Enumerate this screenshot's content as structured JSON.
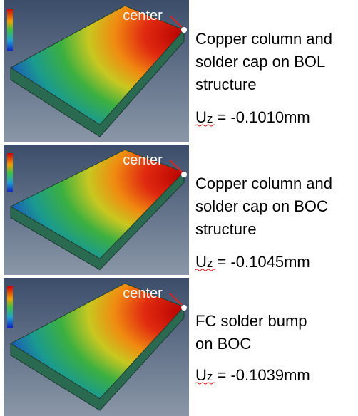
{
  "panels": [
    {
      "label": "center",
      "lines": [
        "Copper column and",
        "solder cap on BOL",
        "structure"
      ],
      "symbol": "U",
      "subscript": "z",
      "result": " = -0.1010mm"
    },
    {
      "label": "center",
      "lines": [
        "Copper column and",
        "solder cap on BOC",
        "structure"
      ],
      "symbol": "U",
      "subscript": "z",
      "result": " = -0.1045mm"
    },
    {
      "label": "center",
      "lines": [
        "FC solder bump",
        "on BOC"
      ],
      "symbol": "U",
      "subscript": "z",
      "result": " = -0.1039mm"
    }
  ]
}
